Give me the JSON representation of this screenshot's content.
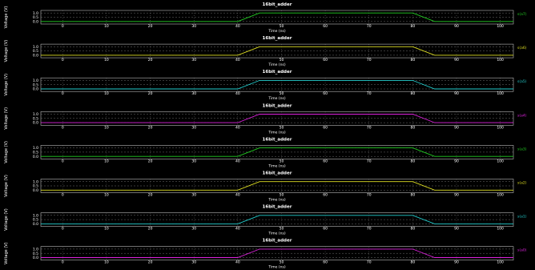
{
  "chart_data": [
    {
      "type": "line",
      "title": "16bit_adder",
      "xlabel": "Time (ns)",
      "ylabel": "Voltage (V)",
      "xlim": [
        -5,
        103
      ],
      "ylim": [
        -0.3,
        1.3
      ],
      "xticks": [
        0,
        10,
        20,
        30,
        40,
        50,
        60,
        70,
        80,
        90,
        100
      ],
      "yticks": [
        0.0,
        0.5,
        1.0
      ],
      "ytick_labels": [
        "0.0",
        "0.5",
        "1.0"
      ],
      "grid": true,
      "series": [
        {
          "name": "s(a7)",
          "color": "#22cc22",
          "x": [
            -5,
            40,
            45,
            80,
            85,
            103
          ],
          "y": [
            0,
            0,
            1,
            1,
            0,
            0
          ]
        }
      ]
    },
    {
      "type": "line",
      "title": "16bit_adder",
      "xlabel": "Time (ns)",
      "ylabel": "Voltage (V)",
      "xlim": [
        -5,
        103
      ],
      "ylim": [
        -0.3,
        1.3
      ],
      "xticks": [
        0,
        10,
        20,
        30,
        40,
        50,
        60,
        70,
        80,
        90,
        100
      ],
      "yticks": [
        0.0,
        0.5,
        1.0
      ],
      "ytick_labels": [
        "0.0",
        "0.5",
        "1.0"
      ],
      "grid": true,
      "series": [
        {
          "name": "s(a6)",
          "color": "#dddd22",
          "x": [
            -5,
            40,
            45,
            80,
            85,
            103
          ],
          "y": [
            0,
            0,
            1,
            1,
            0,
            0
          ]
        }
      ]
    },
    {
      "type": "line",
      "title": "16bit_adder",
      "xlabel": "Time (ns)",
      "ylabel": "Voltage (V)",
      "xlim": [
        -5,
        103
      ],
      "ylim": [
        -0.3,
        1.3
      ],
      "xticks": [
        0,
        10,
        20,
        30,
        40,
        50,
        60,
        70,
        80,
        90,
        100
      ],
      "yticks": [
        0.0,
        0.5,
        1.0
      ],
      "ytick_labels": [
        "0.0",
        "0.5",
        "1.0"
      ],
      "grid": true,
      "series": [
        {
          "name": "s(a5)",
          "color": "#22cccc",
          "x": [
            -5,
            40,
            45,
            80,
            85,
            103
          ],
          "y": [
            0,
            0,
            1,
            1,
            0,
            0
          ]
        }
      ]
    },
    {
      "type": "line",
      "title": "16bit_adder",
      "xlabel": "Time (ns)",
      "ylabel": "Voltage (V)",
      "xlim": [
        -5,
        103
      ],
      "ylim": [
        -0.3,
        1.3
      ],
      "xticks": [
        0,
        10,
        20,
        30,
        40,
        50,
        60,
        70,
        80,
        90,
        100
      ],
      "yticks": [
        0.0,
        0.5,
        1.0
      ],
      "ytick_labels": [
        "0.0",
        "0.5",
        "1.0"
      ],
      "grid": true,
      "series": [
        {
          "name": "s(a4)",
          "color": "#dd22dd",
          "x": [
            -5,
            40,
            45,
            80,
            85,
            103
          ],
          "y": [
            0,
            0,
            1,
            1,
            0,
            0
          ]
        }
      ]
    },
    {
      "type": "line",
      "title": "16bit_adder",
      "xlabel": "Time (ns)",
      "ylabel": "Voltage (V)",
      "xlim": [
        -5,
        103
      ],
      "ylim": [
        -0.3,
        1.3
      ],
      "xticks": [
        0,
        10,
        20,
        30,
        40,
        50,
        60,
        70,
        80,
        90,
        100
      ],
      "yticks": [
        0.0,
        0.5,
        1.0
      ],
      "ytick_labels": [
        "0.0",
        "0.5",
        "1.0"
      ],
      "grid": true,
      "series": [
        {
          "name": "s(a3)",
          "color": "#22cc22",
          "x": [
            -5,
            40,
            45,
            80,
            85,
            103
          ],
          "y": [
            0,
            0,
            1,
            1,
            0,
            0
          ]
        }
      ]
    },
    {
      "type": "line",
      "title": "16bit_adder",
      "xlabel": "Time (ns)",
      "ylabel": "Voltage (V)",
      "xlim": [
        -5,
        103
      ],
      "ylim": [
        -0.3,
        1.3
      ],
      "xticks": [
        0,
        10,
        20,
        30,
        40,
        50,
        60,
        70,
        80,
        90,
        100
      ],
      "yticks": [
        0.0,
        0.5,
        1.0
      ],
      "ytick_labels": [
        "0.0",
        "0.5",
        "1.0"
      ],
      "grid": true,
      "series": [
        {
          "name": "s(a2)",
          "color": "#dddd22",
          "x": [
            -5,
            40,
            45,
            80,
            85,
            103
          ],
          "y": [
            0,
            0,
            1,
            1,
            0,
            0
          ]
        }
      ]
    },
    {
      "type": "line",
      "title": "16bit_adder",
      "xlabel": "Time (ns)",
      "ylabel": "Voltage (V)",
      "xlim": [
        -5,
        103
      ],
      "ylim": [
        -0.3,
        1.3
      ],
      "xticks": [
        0,
        10,
        20,
        30,
        40,
        50,
        60,
        70,
        80,
        90,
        100
      ],
      "yticks": [
        0.0,
        0.5,
        1.0
      ],
      "ytick_labels": [
        "0.0",
        "0.5",
        "1.0"
      ],
      "grid": true,
      "series": [
        {
          "name": "s(a1)",
          "color": "#22cccc",
          "x": [
            -5,
            40,
            45,
            80,
            85,
            103
          ],
          "y": [
            0,
            0,
            1,
            1,
            0,
            0
          ]
        }
      ]
    },
    {
      "type": "line",
      "title": "16bit_adder",
      "xlabel": "Time (ns)",
      "ylabel": "Voltage (V)",
      "xlim": [
        -5,
        103
      ],
      "ylim": [
        -0.3,
        1.3
      ],
      "xticks": [
        0,
        10,
        20,
        30,
        40,
        50,
        60,
        70,
        80,
        90,
        100
      ],
      "yticks": [
        0.0,
        0.5,
        1.0
      ],
      "ytick_labels": [
        "0.0",
        "0.5",
        "1.0"
      ],
      "grid": true,
      "series": [
        {
          "name": "s(a0)",
          "color": "#dd22dd",
          "x": [
            -5,
            40,
            45,
            80,
            85,
            103
          ],
          "y": [
            0,
            0,
            1,
            1,
            0,
            0
          ]
        }
      ]
    }
  ]
}
